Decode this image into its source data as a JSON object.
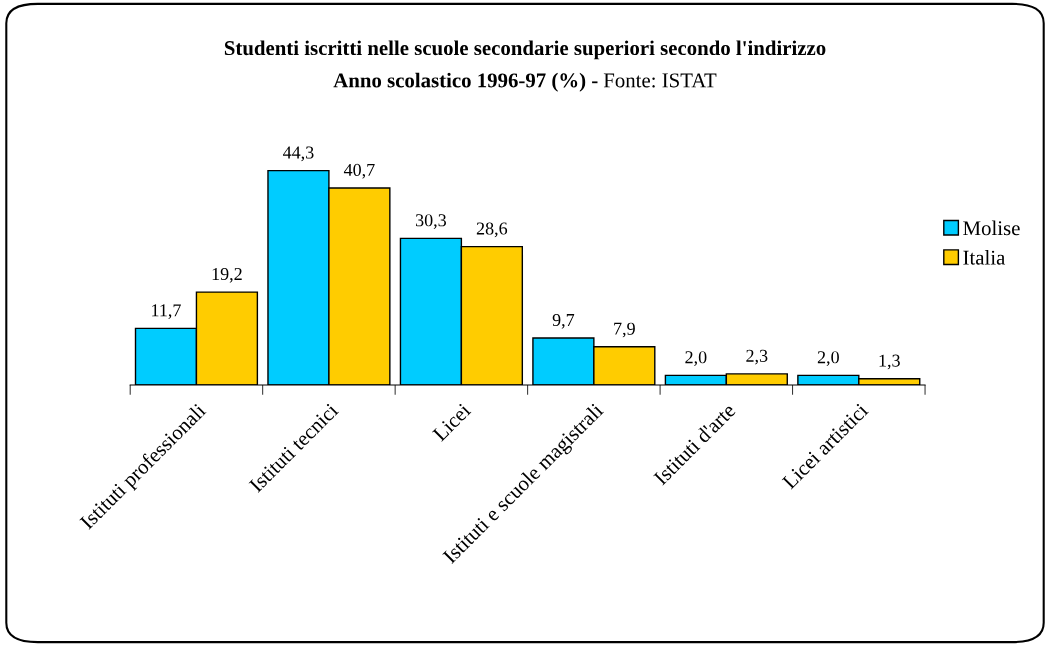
{
  "chart_data": {
    "type": "bar",
    "title": "Studenti iscritti nelle scuole secondarie superiori secondo l'indirizzo",
    "subtitle": "Anno scolastico 1996-97 (%) -",
    "annotations": [
      "Fonte: ISTAT"
    ],
    "categories": [
      "Istituti professionali",
      "Istituti tecnici",
      "Licei",
      "Istituti e scuole magistrali",
      "Istituti d'arte",
      "Licei artistici"
    ],
    "series": [
      {
        "name": "Molise",
        "color": "#00ccff",
        "values": [
          11.7,
          44.3,
          30.3,
          9.7,
          2.0,
          2.0
        ],
        "value_labels": [
          "11,7",
          "44,3",
          "30,3",
          "9,7",
          "2,0",
          "2,0"
        ]
      },
      {
        "name": "Italia",
        "color": "#ffcc00",
        "values": [
          19.2,
          40.7,
          28.6,
          7.9,
          2.3,
          1.3
        ],
        "value_labels": [
          "19,2",
          "40,7",
          "28,6",
          "7,9",
          "2,3",
          "1,3"
        ]
      }
    ],
    "legend": "right",
    "grid": false
  }
}
